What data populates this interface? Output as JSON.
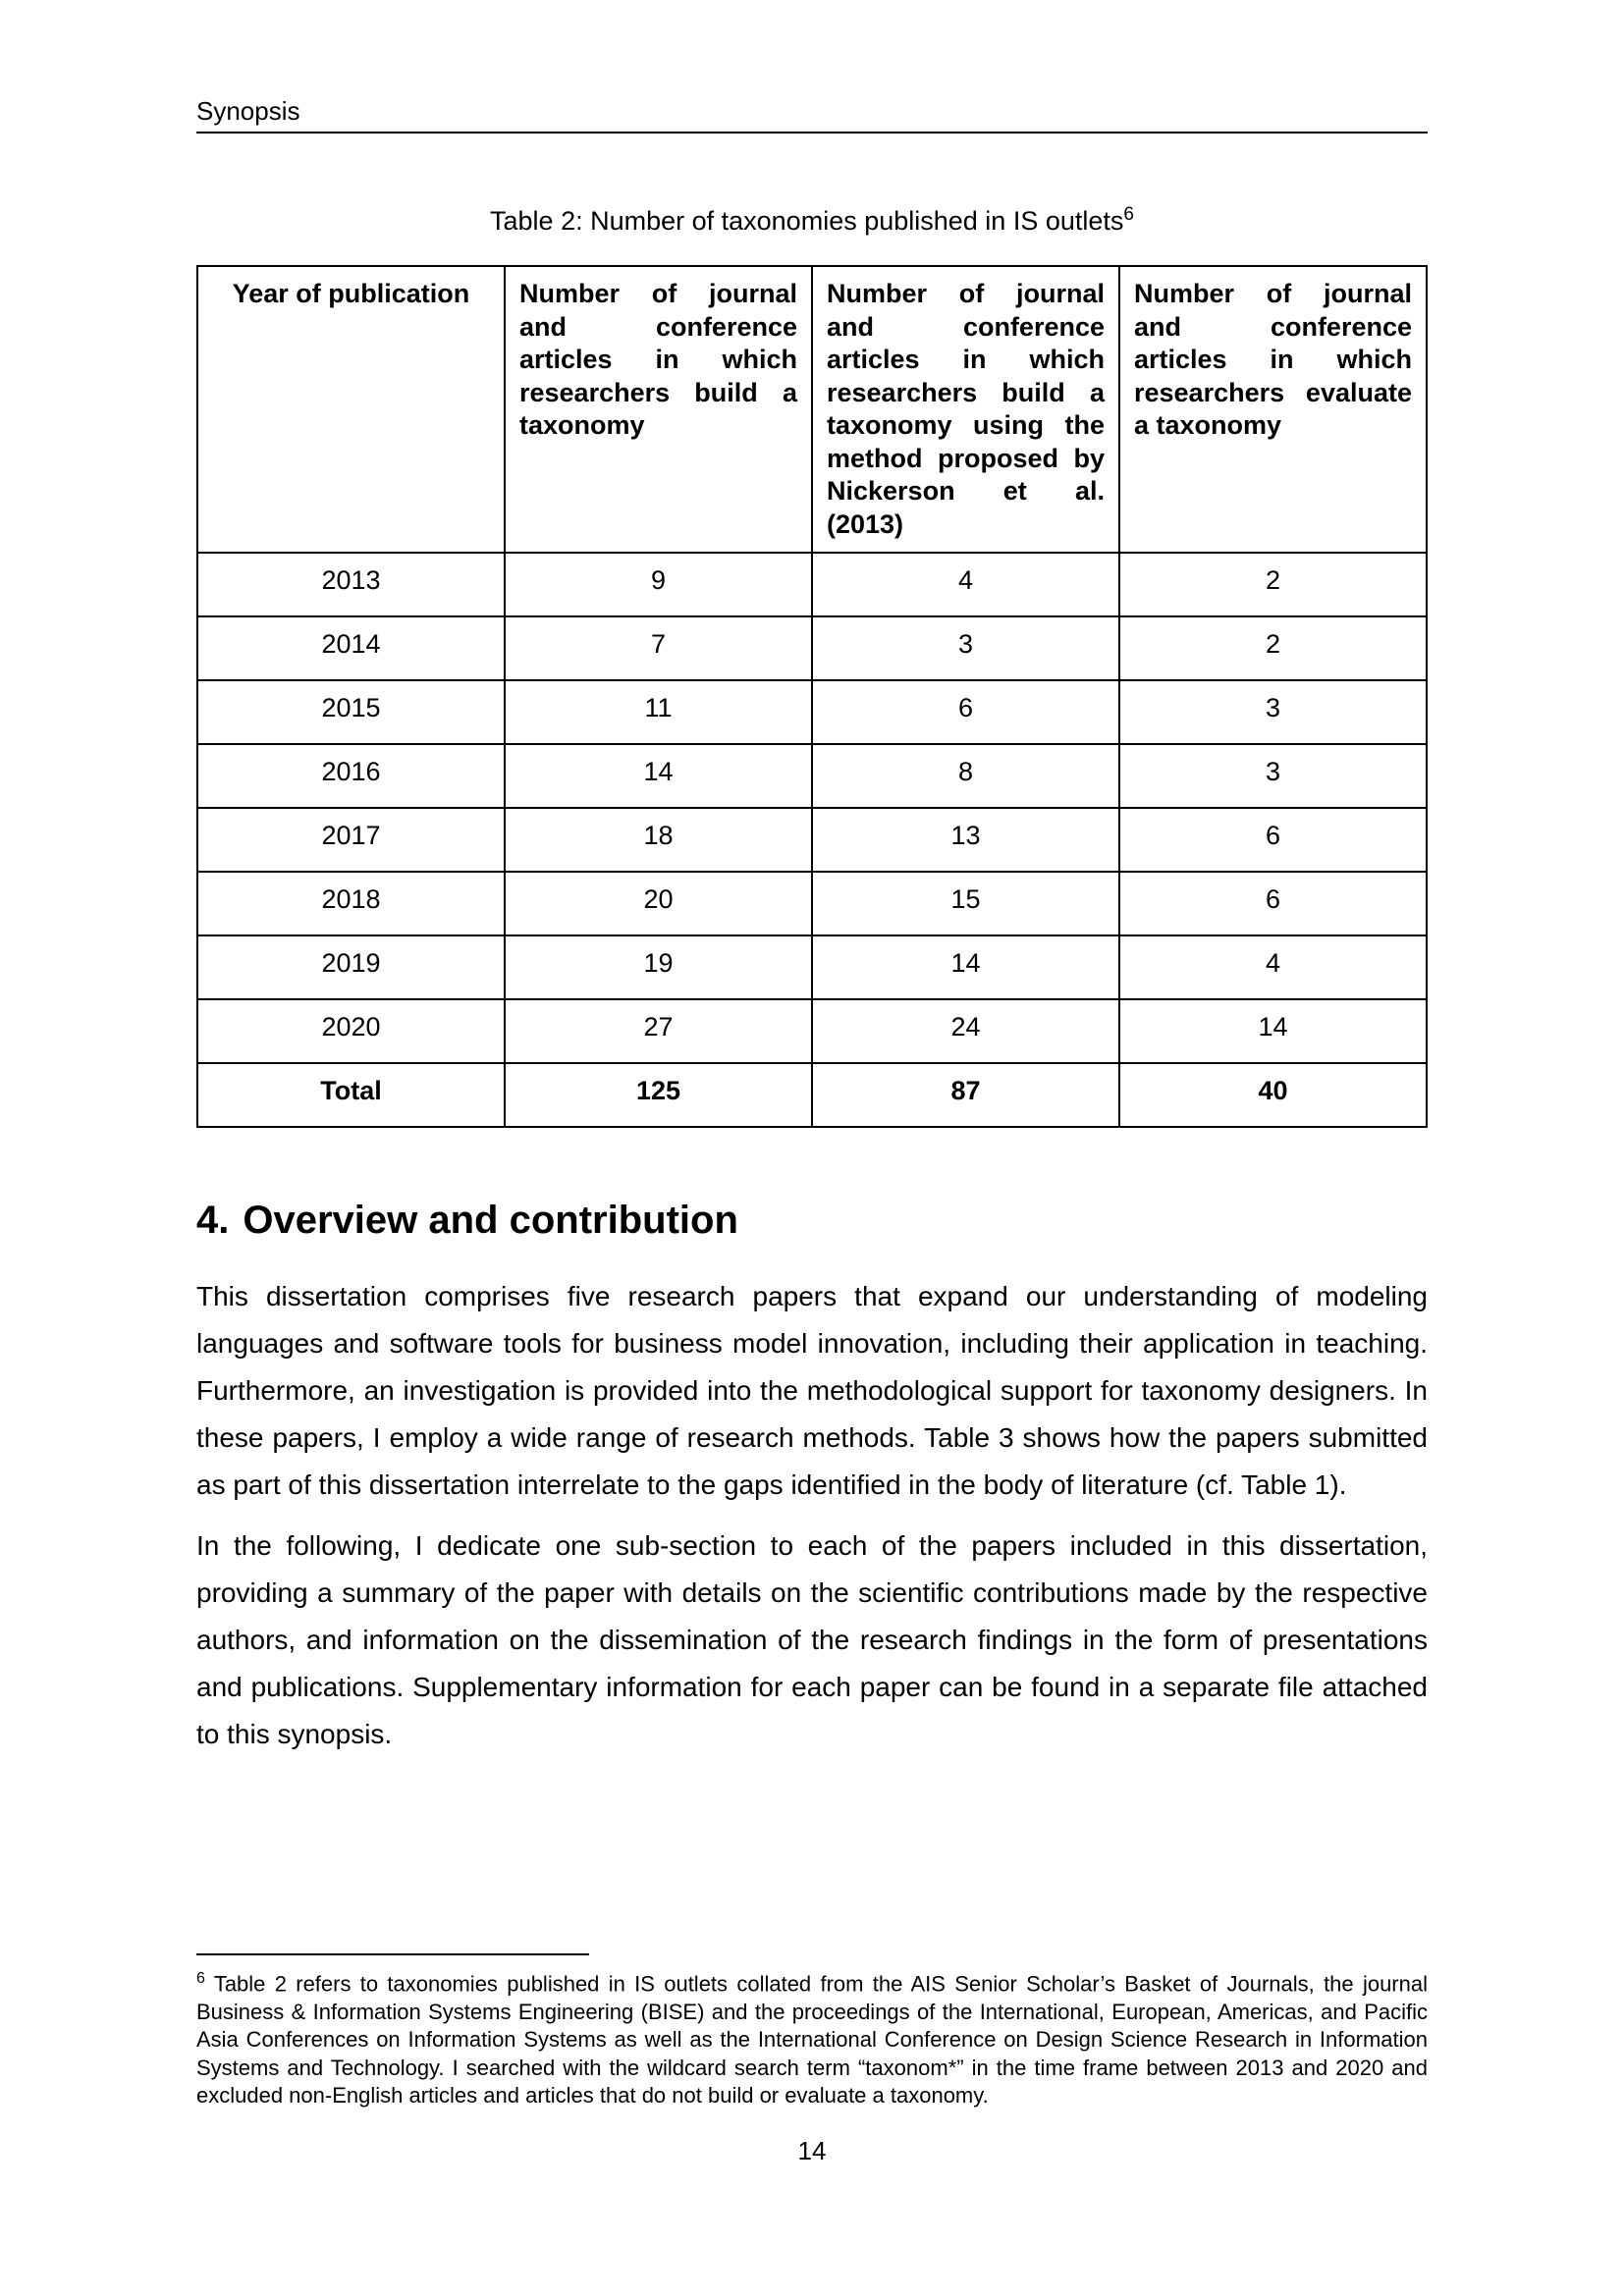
{
  "page": {
    "running_header": "Synopsis",
    "page_number": "14"
  },
  "caption": {
    "text": "Table 2: Number of taxonomies published in IS outlets",
    "footnote_ref": "6"
  },
  "table": {
    "headers": [
      "Year of publication",
      "Number of journal and conference articles in which researchers build a taxonomy",
      "Number of journal and conference articles in which researchers build a taxonomy using the method proposed by Nickerson et al. (2013)",
      "Number of journal and conference articles in which researchers evaluate a taxonomy"
    ],
    "rows": [
      {
        "year": "2013",
        "values": [
          "9",
          "4",
          "2"
        ],
        "bold": false
      },
      {
        "year": "2014",
        "values": [
          "7",
          "3",
          "2"
        ],
        "bold": false
      },
      {
        "year": "2015",
        "values": [
          "11",
          "6",
          "3"
        ],
        "bold": false
      },
      {
        "year": "2016",
        "values": [
          "14",
          "8",
          "3"
        ],
        "bold": false
      },
      {
        "year": "2017",
        "values": [
          "18",
          "13",
          "6"
        ],
        "bold": false
      },
      {
        "year": "2018",
        "values": [
          "20",
          "15",
          "6"
        ],
        "bold": false
      },
      {
        "year": "2019",
        "values": [
          "19",
          "14",
          "4"
        ],
        "bold": false
      },
      {
        "year": "2020",
        "values": [
          "27",
          "24",
          "14"
        ],
        "bold": false
      },
      {
        "year": "Total",
        "values": [
          "125",
          "87",
          "40"
        ],
        "bold": true
      }
    ]
  },
  "section": {
    "number": "4.",
    "title": "Overview and contribution"
  },
  "paragraphs": [
    "This dissertation comprises five research papers that expand our understanding of modeling languages and software tools for business model innovation, including their application in teaching. Furthermore, an investigation is provided into the methodological support for taxonomy designers. In these papers, I employ a wide range of research methods. Table 3 shows how the papers submitted as part of this dissertation interrelate to the gaps identified in the body of literature (cf. Table 1).",
    "In the following, I dedicate one sub-section to each of the papers included in this dissertation, providing a summary of the paper with details on the scientific contributions made by the respective authors, and information on the dissemination of the research findings in the form of presentations and publications. Supplementary information for each paper can be found in a separate file attached to this synopsis."
  ],
  "footnote": {
    "number": "6",
    "text": "Table 2 refers to taxonomies published in IS outlets collated from the AIS Senior Scholar’s Basket of Journals, the journal Business & Information Systems Engineering (BISE) and the proceedings of the International, European, Americas, and Pacific Asia Conferences on Information Systems as well as the International Conference on Design Science Research in Information Systems and Technology. I searched with the wildcard search term “taxonom*” in the time frame between 2013 and 2020 and excluded non-English articles and articles that do not build or evaluate a taxonomy."
  },
  "colors": {
    "text": "#000000",
    "background": "#ffffff",
    "border": "#000000"
  }
}
